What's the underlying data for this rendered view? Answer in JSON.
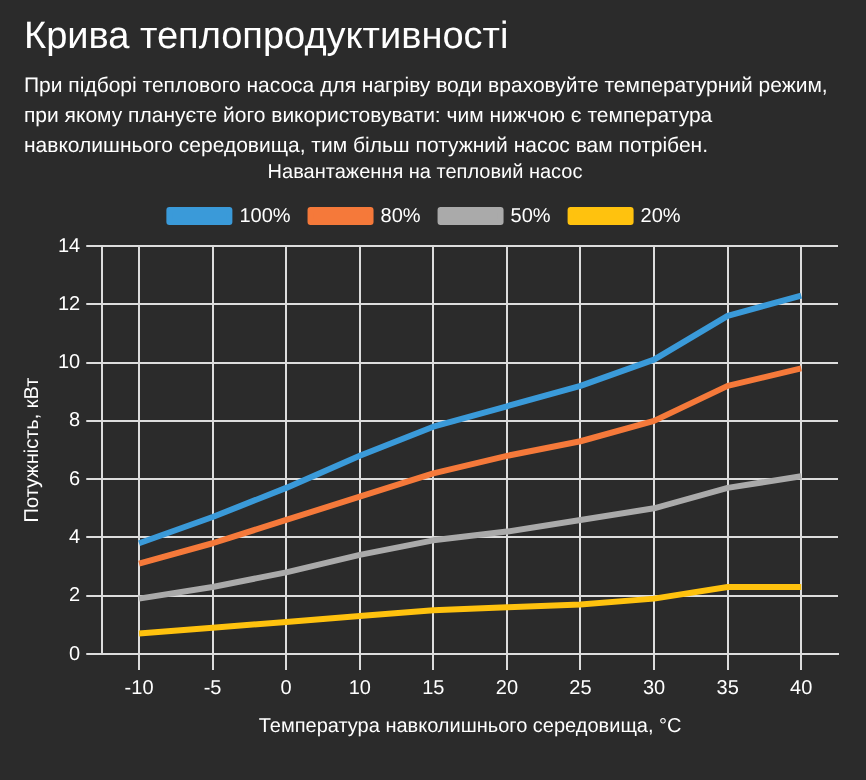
{
  "chart_data": {
    "type": "line",
    "title": "Крива теплопродуктивності",
    "subtitle": "При підборі теплового насоса для нагріву води враховуйте температурний режим, при якому плануєте його використовувати: чим нижчою є температура навколишнього середовища, тим більш потужний насос вам потрібен.",
    "legend_title": "Навантаження на тепловий насос",
    "xlabel": "Температура навколишнього середовища, °C",
    "ylabel": "Потужність, кВт",
    "categories": [
      "-10",
      "-5",
      "0",
      "10",
      "15",
      "20",
      "25",
      "30",
      "35",
      "40"
    ],
    "series": [
      {
        "name": "100%",
        "color": "#3a9ad9",
        "values": [
          3.8,
          4.7,
          5.7,
          6.8,
          7.8,
          8.5,
          9.2,
          10.1,
          11.6,
          12.3
        ]
      },
      {
        "name": "80%",
        "color": "#f5793a",
        "values": [
          3.1,
          3.8,
          4.6,
          5.4,
          6.2,
          6.8,
          7.3,
          8.0,
          9.2,
          9.8
        ]
      },
      {
        "name": "50%",
        "color": "#aaaaaa",
        "values": [
          1.9,
          2.3,
          2.8,
          3.4,
          3.9,
          4.2,
          4.6,
          5.0,
          5.7,
          6.1
        ]
      },
      {
        "name": "20%",
        "color": "#ffc20e",
        "values": [
          0.7,
          0.9,
          1.1,
          1.3,
          1.5,
          1.6,
          1.7,
          1.9,
          2.3,
          2.3
        ]
      }
    ],
    "ylim": [
      0,
      14
    ],
    "yticks": [
      0,
      2,
      4,
      6,
      8,
      10,
      12,
      14
    ],
    "grid": true,
    "legend": "top",
    "marker": "none",
    "line_style": "solid"
  }
}
